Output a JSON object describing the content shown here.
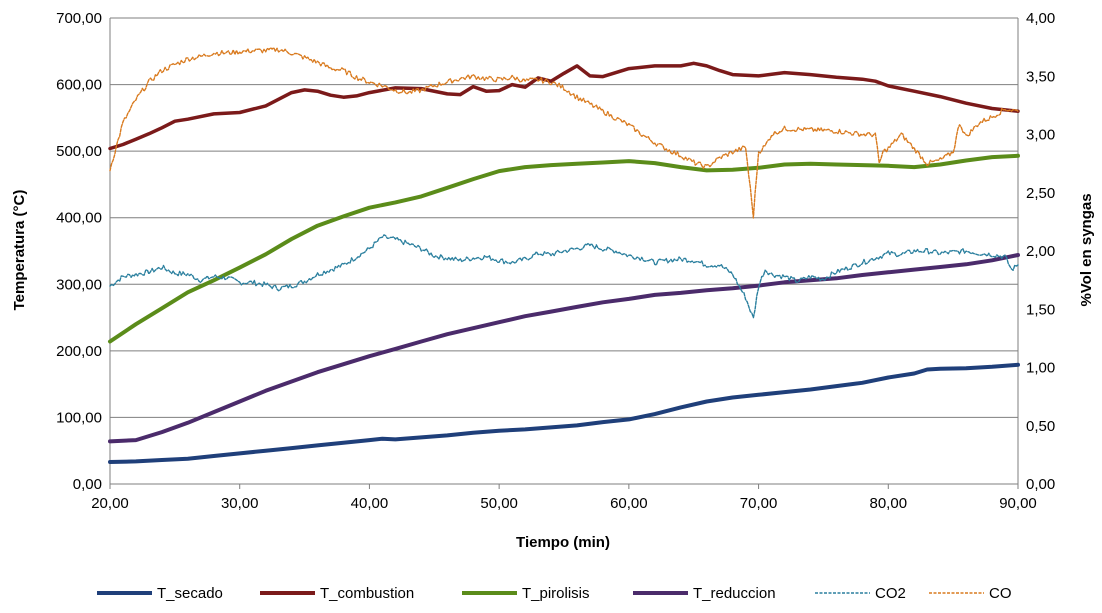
{
  "chart_data": {
    "type": "line",
    "title": "",
    "xlabel": "Tiempo (min)",
    "ylabel": "Temperatura (°C)",
    "y2label": "%Vol en syngas",
    "xlim": [
      20,
      90
    ],
    "ylim": [
      0,
      700
    ],
    "y2lim": [
      0,
      4
    ],
    "grid": "horizontal",
    "legend_position": "bottom",
    "x_ticks": [
      "20,00",
      "30,00",
      "40,00",
      "50,00",
      "60,00",
      "70,00",
      "80,00",
      "90,00"
    ],
    "y_ticks": [
      "0,00",
      "100,00",
      "200,00",
      "300,00",
      "400,00",
      "500,00",
      "600,00",
      "700,00"
    ],
    "y2_ticks": [
      "0,00",
      "0,50",
      "1,00",
      "1,50",
      "2,00",
      "2,50",
      "3,00",
      "3,50",
      "4,00"
    ],
    "series": [
      {
        "name": "T_secado",
        "axis": "left",
        "color": "#1f3f7a",
        "style": "solid",
        "width": 4,
        "points": [
          [
            20,
            33
          ],
          [
            22,
            34
          ],
          [
            24,
            36
          ],
          [
            26,
            38
          ],
          [
            28,
            42
          ],
          [
            30,
            46
          ],
          [
            32,
            50
          ],
          [
            34,
            54
          ],
          [
            36,
            58
          ],
          [
            38,
            62
          ],
          [
            40,
            66
          ],
          [
            41,
            68
          ],
          [
            42,
            67
          ],
          [
            44,
            70
          ],
          [
            46,
            73
          ],
          [
            48,
            77
          ],
          [
            50,
            80
          ],
          [
            52,
            82
          ],
          [
            54,
            85
          ],
          [
            56,
            88
          ],
          [
            58,
            93
          ],
          [
            60,
            97
          ],
          [
            62,
            105
          ],
          [
            64,
            115
          ],
          [
            66,
            124
          ],
          [
            68,
            130
          ],
          [
            70,
            134
          ],
          [
            72,
            138
          ],
          [
            74,
            142
          ],
          [
            76,
            147
          ],
          [
            78,
            152
          ],
          [
            80,
            160
          ],
          [
            82,
            166
          ],
          [
            83,
            172
          ],
          [
            84,
            173
          ],
          [
            86,
            174
          ],
          [
            88,
            176
          ],
          [
            90,
            179
          ]
        ]
      },
      {
        "name": "T_combustion",
        "axis": "left",
        "color": "#7b1a1a",
        "style": "solid",
        "width": 3.5,
        "points": [
          [
            20,
            504
          ],
          [
            21,
            510
          ],
          [
            22,
            518
          ],
          [
            23,
            526
          ],
          [
            24,
            535
          ],
          [
            25,
            545
          ],
          [
            26,
            548
          ],
          [
            28,
            556
          ],
          [
            30,
            558
          ],
          [
            32,
            568
          ],
          [
            34,
            588
          ],
          [
            35,
            592
          ],
          [
            36,
            590
          ],
          [
            37,
            584
          ],
          [
            38,
            581
          ],
          [
            39,
            583
          ],
          [
            40,
            588
          ],
          [
            42,
            595
          ],
          [
            44,
            594
          ],
          [
            46,
            586
          ],
          [
            47,
            585
          ],
          [
            48,
            597
          ],
          [
            49,
            590
          ],
          [
            50,
            591
          ],
          [
            51,
            600
          ],
          [
            52,
            596
          ],
          [
            53,
            610
          ],
          [
            54,
            605
          ],
          [
            55,
            617
          ],
          [
            56,
            628
          ],
          [
            57,
            613
          ],
          [
            58,
            612
          ],
          [
            60,
            624
          ],
          [
            62,
            628
          ],
          [
            64,
            628
          ],
          [
            65,
            632
          ],
          [
            66,
            628
          ],
          [
            67,
            621
          ],
          [
            68,
            615
          ],
          [
            70,
            613
          ],
          [
            72,
            618
          ],
          [
            74,
            615
          ],
          [
            76,
            611
          ],
          [
            78,
            608
          ],
          [
            79,
            605
          ],
          [
            80,
            598
          ],
          [
            82,
            590
          ],
          [
            84,
            582
          ],
          [
            86,
            572
          ],
          [
            88,
            564
          ],
          [
            90,
            560
          ]
        ]
      },
      {
        "name": "T_pirolisis",
        "axis": "left",
        "color": "#5b8c1a",
        "style": "solid",
        "width": 4,
        "points": [
          [
            20,
            214
          ],
          [
            22,
            240
          ],
          [
            24,
            264
          ],
          [
            26,
            288
          ],
          [
            28,
            306
          ],
          [
            30,
            325
          ],
          [
            32,
            345
          ],
          [
            34,
            368
          ],
          [
            36,
            388
          ],
          [
            38,
            402
          ],
          [
            40,
            415
          ],
          [
            42,
            423
          ],
          [
            44,
            432
          ],
          [
            46,
            445
          ],
          [
            48,
            458
          ],
          [
            50,
            470
          ],
          [
            52,
            476
          ],
          [
            54,
            479
          ],
          [
            56,
            481
          ],
          [
            58,
            483
          ],
          [
            60,
            485
          ],
          [
            62,
            482
          ],
          [
            64,
            476
          ],
          [
            66,
            471
          ],
          [
            68,
            472
          ],
          [
            70,
            475
          ],
          [
            72,
            480
          ],
          [
            74,
            481
          ],
          [
            76,
            480
          ],
          [
            78,
            479
          ],
          [
            80,
            478
          ],
          [
            82,
            476
          ],
          [
            84,
            480
          ],
          [
            86,
            486
          ],
          [
            88,
            491
          ],
          [
            90,
            493
          ]
        ]
      },
      {
        "name": "T_reduccion",
        "axis": "left",
        "color": "#4b2b6b",
        "style": "solid",
        "width": 4,
        "points": [
          [
            20,
            64
          ],
          [
            22,
            66
          ],
          [
            24,
            78
          ],
          [
            26,
            92
          ],
          [
            28,
            108
          ],
          [
            30,
            124
          ],
          [
            32,
            140
          ],
          [
            34,
            154
          ],
          [
            36,
            168
          ],
          [
            38,
            180
          ],
          [
            40,
            192
          ],
          [
            42,
            203
          ],
          [
            44,
            214
          ],
          [
            46,
            225
          ],
          [
            48,
            234
          ],
          [
            50,
            243
          ],
          [
            52,
            252
          ],
          [
            54,
            259
          ],
          [
            56,
            266
          ],
          [
            58,
            273
          ],
          [
            60,
            278
          ],
          [
            62,
            284
          ],
          [
            64,
            287
          ],
          [
            66,
            291
          ],
          [
            68,
            294
          ],
          [
            70,
            298
          ],
          [
            72,
            303
          ],
          [
            74,
            306
          ],
          [
            76,
            309
          ],
          [
            78,
            314
          ],
          [
            80,
            318
          ],
          [
            82,
            322
          ],
          [
            84,
            326
          ],
          [
            86,
            330
          ],
          [
            88,
            336
          ],
          [
            90,
            344
          ]
        ]
      },
      {
        "name": "CO2",
        "axis": "right",
        "color": "#2a7f9e",
        "style": "dashed",
        "width": 1.4,
        "points": [
          [
            20,
            1.7
          ],
          [
            21,
            1.78
          ],
          [
            22,
            1.8
          ],
          [
            23,
            1.82
          ],
          [
            24,
            1.86
          ],
          [
            25,
            1.81
          ],
          [
            26,
            1.8
          ],
          [
            27,
            1.75
          ],
          [
            28,
            1.78
          ],
          [
            29,
            1.77
          ],
          [
            30,
            1.73
          ],
          [
            31,
            1.73
          ],
          [
            32,
            1.71
          ],
          [
            33,
            1.68
          ],
          [
            34,
            1.7
          ],
          [
            35,
            1.74
          ],
          [
            36,
            1.8
          ],
          [
            37,
            1.84
          ],
          [
            38,
            1.88
          ],
          [
            39,
            1.95
          ],
          [
            40,
            2.02
          ],
          [
            41,
            2.12
          ],
          [
            42,
            2.1
          ],
          [
            43,
            2.06
          ],
          [
            44,
            2.02
          ],
          [
            45,
            1.96
          ],
          [
            46,
            1.94
          ],
          [
            47,
            1.92
          ],
          [
            48,
            1.94
          ],
          [
            49,
            1.95
          ],
          [
            50,
            1.92
          ],
          [
            51,
            1.9
          ],
          [
            52,
            1.93
          ],
          [
            53,
            1.98
          ],
          [
            54,
            1.97
          ],
          [
            55,
            2.0
          ],
          [
            56,
            2.02
          ],
          [
            57,
            2.05
          ],
          [
            58,
            2.02
          ],
          [
            59,
            2.0
          ],
          [
            60,
            1.96
          ],
          [
            61,
            1.94
          ],
          [
            62,
            1.9
          ],
          [
            63,
            1.92
          ],
          [
            64,
            1.93
          ],
          [
            65,
            1.92
          ],
          [
            66,
            1.88
          ],
          [
            67,
            1.88
          ],
          [
            68,
            1.8
          ],
          [
            69,
            1.6
          ],
          [
            69.6,
            1.42
          ],
          [
            70,
            1.7
          ],
          [
            70.5,
            1.84
          ],
          [
            71,
            1.8
          ],
          [
            72,
            1.78
          ],
          [
            73,
            1.74
          ],
          [
            74,
            1.78
          ],
          [
            75,
            1.76
          ],
          [
            76,
            1.82
          ],
          [
            77,
            1.86
          ],
          [
            78,
            1.9
          ],
          [
            79,
            1.94
          ],
          [
            80,
            1.98
          ],
          [
            81,
            1.97
          ],
          [
            82,
            2.0
          ],
          [
            83,
            2.0
          ],
          [
            84,
            1.98
          ],
          [
            85,
            1.99
          ],
          [
            86,
            2.0
          ],
          [
            87,
            1.98
          ],
          [
            88,
            1.97
          ],
          [
            89,
            1.95
          ],
          [
            89.5,
            1.84
          ],
          [
            90,
            1.88
          ]
        ]
      },
      {
        "name": "CO",
        "axis": "right",
        "color": "#d97a1e",
        "style": "dashed",
        "width": 1.4,
        "points": [
          [
            20,
            2.7
          ],
          [
            21,
            3.1
          ],
          [
            22,
            3.3
          ],
          [
            23,
            3.45
          ],
          [
            24,
            3.55
          ],
          [
            25,
            3.6
          ],
          [
            26,
            3.65
          ],
          [
            27,
            3.67
          ],
          [
            28,
            3.7
          ],
          [
            29,
            3.7
          ],
          [
            30,
            3.71
          ],
          [
            31,
            3.72
          ],
          [
            32,
            3.72
          ],
          [
            33,
            3.73
          ],
          [
            34,
            3.7
          ],
          [
            35,
            3.66
          ],
          [
            36,
            3.62
          ],
          [
            37,
            3.57
          ],
          [
            38,
            3.55
          ],
          [
            39,
            3.49
          ],
          [
            40,
            3.45
          ],
          [
            41,
            3.42
          ],
          [
            42,
            3.38
          ],
          [
            43,
            3.36
          ],
          [
            44,
            3.38
          ],
          [
            45,
            3.42
          ],
          [
            46,
            3.45
          ],
          [
            47,
            3.48
          ],
          [
            48,
            3.5
          ],
          [
            49,
            3.48
          ],
          [
            50,
            3.47
          ],
          [
            51,
            3.49
          ],
          [
            52,
            3.46
          ],
          [
            53,
            3.47
          ],
          [
            54,
            3.45
          ],
          [
            55,
            3.4
          ],
          [
            56,
            3.32
          ],
          [
            57,
            3.26
          ],
          [
            58,
            3.2
          ],
          [
            59,
            3.14
          ],
          [
            60,
            3.08
          ],
          [
            61,
            3.0
          ],
          [
            62,
            2.93
          ],
          [
            63,
            2.87
          ],
          [
            64,
            2.82
          ],
          [
            65,
            2.76
          ],
          [
            66,
            2.72
          ],
          [
            67,
            2.8
          ],
          [
            68,
            2.85
          ],
          [
            69,
            2.89
          ],
          [
            69.6,
            2.3
          ],
          [
            70,
            2.85
          ],
          [
            70.5,
            2.9
          ],
          [
            71,
            3.0
          ],
          [
            72,
            3.05
          ],
          [
            74,
            3.04
          ],
          [
            76,
            3.03
          ],
          [
            78,
            3.0
          ],
          [
            79,
            3.0
          ],
          [
            79.3,
            2.75
          ],
          [
            79.6,
            2.85
          ],
          [
            80,
            2.88
          ],
          [
            81,
            3.0
          ],
          [
            82,
            2.88
          ],
          [
            83,
            2.75
          ],
          [
            84,
            2.78
          ],
          [
            85,
            2.85
          ],
          [
            85.5,
            3.1
          ],
          [
            86,
            2.98
          ],
          [
            87,
            3.1
          ],
          [
            88,
            3.15
          ],
          [
            89,
            3.22
          ],
          [
            90,
            3.2
          ]
        ]
      }
    ]
  }
}
